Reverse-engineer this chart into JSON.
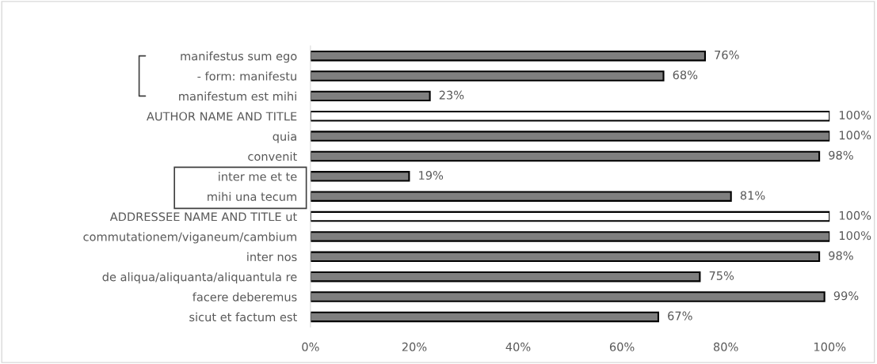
{
  "chart_data": {
    "type": "bar",
    "orientation": "horizontal",
    "categories": [
      "manifestus sum ego",
      "- form: manifestu",
      "manifestum est mihi",
      "AUTHOR NAME AND TITLE",
      "quia",
      "convenit",
      "inter me et te",
      "mihi una tecum",
      "ADDRESSEE NAME AND TITLE ut",
      "commutationem/viganeum/cambium",
      "inter nos",
      "de aliqua/aliquanta/aliquantula re",
      "facere deberemus",
      "sicut et factum est"
    ],
    "values": [
      76,
      68,
      23,
      100,
      100,
      98,
      19,
      81,
      100,
      100,
      98,
      75,
      99,
      67
    ],
    "colors": [
      "#7f7f7f",
      "#7f7f7f",
      "#7f7f7f",
      "#ffffff",
      "#7f7f7f",
      "#7f7f7f",
      "#7f7f7f",
      "#7f7f7f",
      "#ffffff",
      "#7f7f7f",
      "#7f7f7f",
      "#7f7f7f",
      "#7f7f7f",
      "#7f7f7f"
    ],
    "value_labels": [
      "76%",
      "68%",
      "23%",
      "100%",
      "100%",
      "98%",
      "19%",
      "81%",
      "100%",
      "100%",
      "98%",
      "75%",
      "99%",
      "67%"
    ],
    "xlim": [
      0,
      100
    ],
    "xticks": [
      {
        "value": 0,
        "label": "0%"
      },
      {
        "value": 20,
        "label": "20%"
      },
      {
        "value": 40,
        "label": "40%"
      },
      {
        "value": 60,
        "label": "60%"
      },
      {
        "value": 80,
        "label": "80%"
      },
      {
        "value": 100,
        "label": "100%"
      }
    ],
    "grid": false,
    "legend": false
  }
}
